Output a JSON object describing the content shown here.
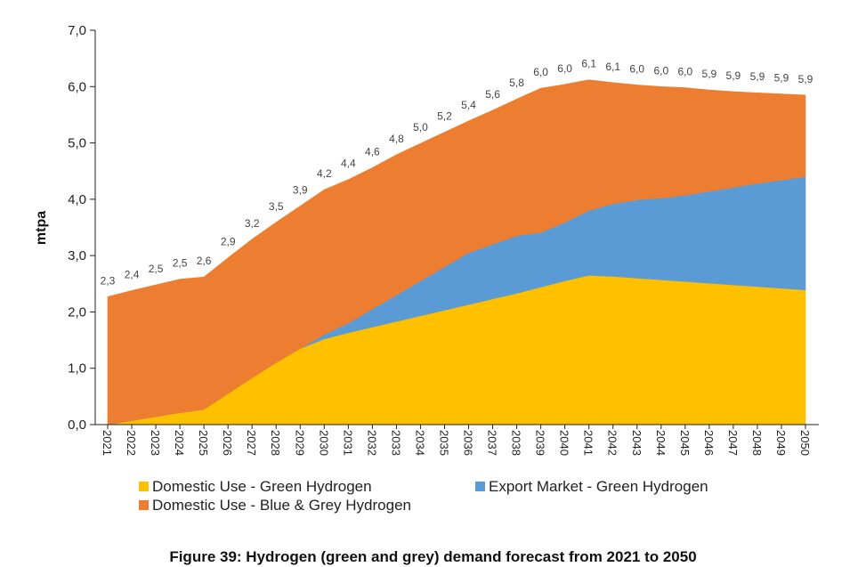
{
  "caption": "Figure 39: Hydrogen (green and grey) demand forecast from 2021 to 2050",
  "chart_data": {
    "type": "area",
    "stacked": true,
    "title": "",
    "xlabel": "",
    "ylabel": "mtpa",
    "ylim": [
      0,
      7
    ],
    "yticks": [
      0,
      1,
      2,
      3,
      4,
      5,
      6,
      7
    ],
    "ytick_labels": [
      "0,0",
      "1,0",
      "2,0",
      "3,0",
      "4,0",
      "5,0",
      "6,0",
      "7,0"
    ],
    "categories": [
      "2021",
      "2022",
      "2023",
      "2024",
      "2025",
      "2026",
      "2027",
      "2028",
      "2029",
      "2030",
      "2031",
      "2032",
      "2033",
      "2034",
      "2035",
      "2036",
      "2037",
      "2038",
      "2039",
      "2040",
      "2041",
      "2042",
      "2043",
      "2044",
      "2045",
      "2046",
      "2047",
      "2048",
      "2049",
      "2050"
    ],
    "series": [
      {
        "name": "Domestic Use - Green Hydrogen",
        "color": "#FFC000",
        "values": [
          0.0,
          0.07,
          0.14,
          0.21,
          0.27,
          0.55,
          0.83,
          1.1,
          1.35,
          1.52,
          1.63,
          1.73,
          1.83,
          1.93,
          2.03,
          2.13,
          2.23,
          2.33,
          2.44,
          2.55,
          2.65,
          2.63,
          2.6,
          2.57,
          2.54,
          2.51,
          2.48,
          2.45,
          2.42,
          2.39
        ]
      },
      {
        "name": "Export Market - Green Hydrogen",
        "color": "#5B9BD5",
        "values": [
          0,
          0,
          0,
          0,
          0,
          0,
          0,
          0,
          0,
          0.08,
          0.17,
          0.32,
          0.47,
          0.62,
          0.77,
          0.92,
          0.97,
          1.02,
          0.97,
          1.04,
          1.15,
          1.29,
          1.39,
          1.45,
          1.53,
          1.63,
          1.73,
          1.83,
          1.92,
          2.01
        ]
      },
      {
        "name": "Domestic Use - Blue & Grey Hydrogen",
        "color": "#ED7D31",
        "values": [
          2.27,
          2.31,
          2.34,
          2.37,
          2.35,
          2.41,
          2.46,
          2.49,
          2.53,
          2.57,
          2.55,
          2.51,
          2.49,
          2.44,
          2.39,
          2.34,
          2.38,
          2.43,
          2.56,
          2.45,
          2.32,
          2.15,
          2.04,
          1.98,
          1.91,
          1.8,
          1.7,
          1.61,
          1.53,
          1.45
        ]
      }
    ],
    "data_labels": [
      "2,3",
      "2,4",
      "2,5",
      "2,5",
      "2,6",
      "2,9",
      "3,2",
      "3,5",
      "3,9",
      "4,2",
      "4,4",
      "4,6",
      "4,8",
      "5,0",
      "5,2",
      "5,4",
      "5,6",
      "5,8",
      "6,0",
      "6,0",
      "6,1",
      "6,1",
      "6,0",
      "6,0",
      "6,0",
      "5,9",
      "5,9",
      "5,9",
      "5,9",
      "5,9"
    ],
    "legend": [
      {
        "label": "Domestic Use - Green Hydrogen",
        "color": "#FFC000"
      },
      {
        "label": "Export Market - Green Hydrogen",
        "color": "#5B9BD5"
      },
      {
        "label": "Domestic Use - Blue & Grey Hydrogen",
        "color": "#ED7D31"
      }
    ],
    "legend_position": "bottom-left"
  }
}
